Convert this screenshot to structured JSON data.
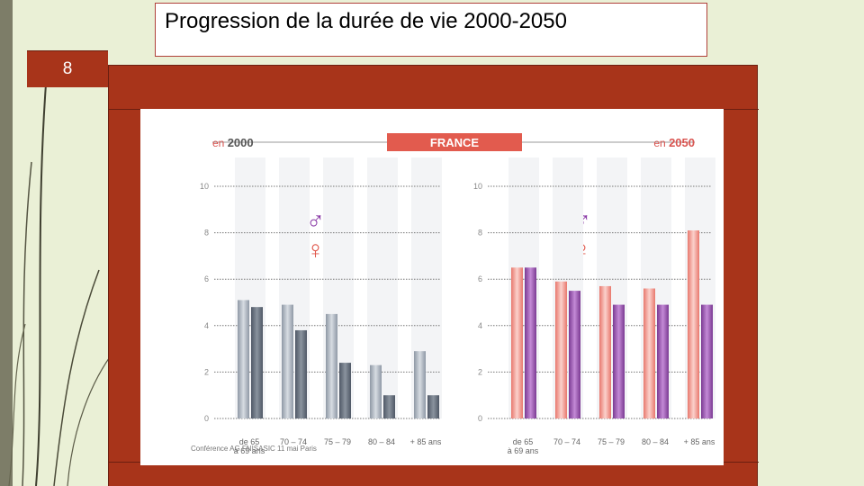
{
  "slide": {
    "title": "Progression de la durée de vie 2000-2050",
    "number": "8"
  },
  "colors": {
    "frame": "#a8341a",
    "banner": "#e25b4e",
    "accent_text": "#d9534f",
    "male_2000": "#6e7885",
    "female_2000": "#aab3bf",
    "male_2050": "#9a4fb0",
    "female_2050": "#f29c94",
    "male_symbol": "#8a3aa6",
    "female_symbol": "#e0564a"
  },
  "chart_data": {
    "type": "bar",
    "banner": "FRANCE",
    "footnote": "Conférence AG FNISASIC 11 mai Paris",
    "categories": [
      "de 65 à 69 ans",
      "70 – 74",
      "75 – 79",
      "80 – 84",
      "+ 85 ans"
    ],
    "category_lines": [
      [
        "de 65",
        "à 69 ans"
      ],
      [
        "70 – 74"
      ],
      [
        "75 – 79"
      ],
      [
        "80 – 84"
      ],
      [
        "+ 85 ans"
      ]
    ],
    "ylim": [
      0,
      10
    ],
    "yticks": [
      "0",
      "2",
      "4",
      "6",
      "8",
      "10"
    ],
    "grid": true,
    "legend_symbols": {
      "male": "♂",
      "female": "♀"
    },
    "panels": [
      {
        "label_prefix": "en",
        "label_year": "2000",
        "label_position": "top-left",
        "series": [
          {
            "values": [
              5.1,
              4.9,
              4.5,
              2.3,
              2.9
            ]
          },
          {
            "values": [
              4.8,
              3.8,
              2.4,
              1.0,
              1.0
            ]
          }
        ]
      },
      {
        "label_prefix": "en",
        "label_year": "2050",
        "label_position": "top-right",
        "series": [
          {
            "values": [
              6.5,
              5.9,
              5.7,
              5.6,
              8.1
            ]
          },
          {
            "values": [
              6.5,
              5.5,
              4.9,
              4.9,
              4.9
            ]
          }
        ]
      }
    ]
  }
}
